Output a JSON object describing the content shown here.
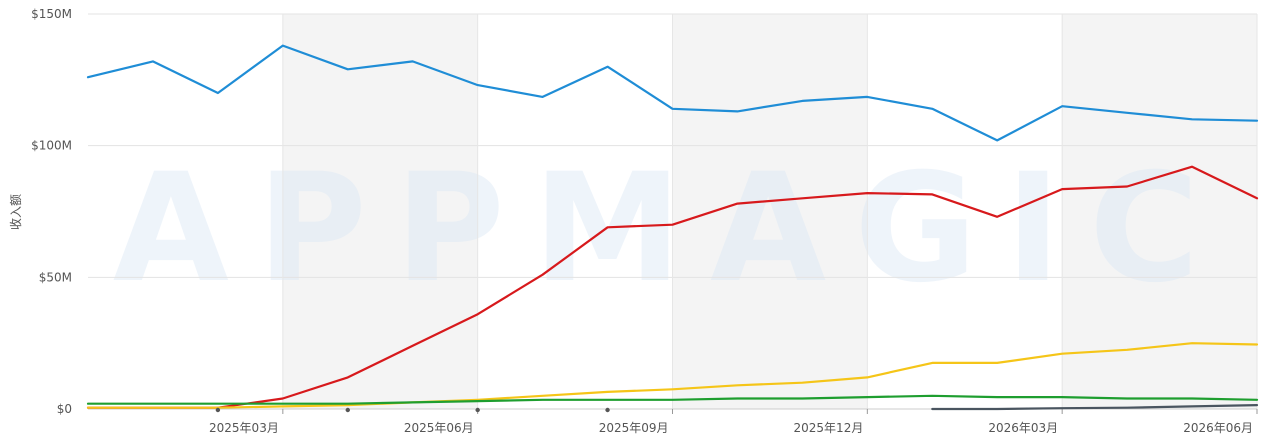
{
  "watermark": "APPMAGIC",
  "chart_data": {
    "type": "line",
    "ylabel": "收入额",
    "yticks": [
      {
        "value": 0,
        "label": "$0"
      },
      {
        "value": 50,
        "label": "$50M"
      },
      {
        "value": 100,
        "label": "$100M"
      },
      {
        "value": 150,
        "label": "$150M"
      }
    ],
    "ylim": [
      0,
      150
    ],
    "y_unit": "$M",
    "x": [
      "2025-01",
      "2025-02",
      "2025-03",
      "2025-04",
      "2025-05",
      "2025-06",
      "2025-07",
      "2025-08",
      "2025-09",
      "2025-10",
      "2025-11",
      "2025-12",
      "2026-01",
      "2026-02",
      "2026-03",
      "2026-04",
      "2026-05",
      "2026-06",
      "2026-07"
    ],
    "xtick_labels": [
      {
        "index": 3,
        "label": "2025年03月"
      },
      {
        "index": 6,
        "label": "2025年06月"
      },
      {
        "index": 9,
        "label": "2025年09月"
      },
      {
        "index": 12,
        "label": "2025年12月"
      },
      {
        "index": 15,
        "label": "2026年03月"
      },
      {
        "index": 18,
        "label": "2026年06月"
      }
    ],
    "grid": true,
    "shaded_bands": [
      [
        3,
        6
      ],
      [
        9,
        12
      ],
      [
        15,
        18
      ]
    ],
    "series": [
      {
        "color": "#1f8dd6",
        "values": [
          126,
          132,
          120,
          138,
          129,
          132,
          123,
          118.5,
          130,
          114,
          113,
          117,
          118.5,
          114,
          102,
          115,
          112.5,
          110,
          109.5
        ]
      },
      {
        "color": "#d7191c",
        "values": [
          0.5,
          0.5,
          0.5,
          4,
          12,
          24,
          36,
          51,
          69,
          70,
          78,
          80,
          82,
          81.5,
          73,
          83.5,
          84.5,
          92,
          80
        ]
      },
      {
        "color": "#f5c518",
        "values": [
          0.5,
          0.5,
          0.5,
          1,
          1.5,
          2.5,
          3.5,
          5,
          6.5,
          7.5,
          9,
          10,
          12,
          17.5,
          17.5,
          21,
          22.5,
          25,
          24.5
        ]
      },
      {
        "color": "#1e9e2f",
        "values": [
          2,
          2,
          2,
          2,
          2,
          2.5,
          3,
          3.5,
          3.5,
          3.5,
          4,
          4,
          4.5,
          5,
          4.5,
          4.5,
          4,
          4,
          3.5
        ]
      },
      {
        "color": "#4a5560",
        "values": [
          null,
          null,
          null,
          null,
          null,
          null,
          null,
          null,
          null,
          null,
          null,
          null,
          null,
          0,
          0,
          0.3,
          0.5,
          1,
          1.5
        ]
      }
    ]
  }
}
